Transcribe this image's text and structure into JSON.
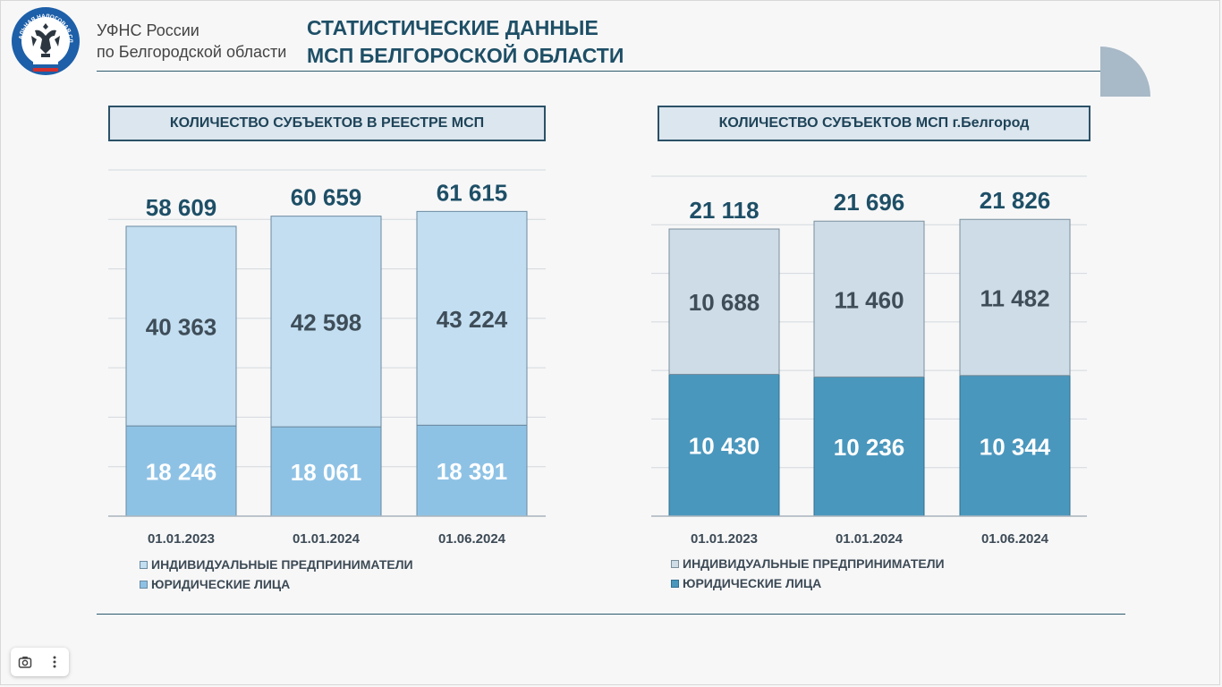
{
  "header": {
    "org_line1": "УФНС России",
    "org_line2": "по Белгородской области",
    "title_line1": "СТАТИСТИЧЕСКИЕ ДАННЫЕ",
    "title_line2": "МСП БЕЛГОРОСКОЙ ОБЛАСТИ",
    "logo_text": "ФЕДЕРАЛЬНАЯ НАЛОГОВАЯ СЛУЖБА"
  },
  "colors": {
    "left_ip": "#c3def1",
    "left_ul": "#8ec2e5",
    "right_ip": "#cddce7",
    "right_ul": "#4a97bd",
    "title": "#1e4f66",
    "value_dark": "#3e4d58",
    "value_light": "#ffffff"
  },
  "chart_data": [
    {
      "type": "bar",
      "title": "КОЛИЧЕСТВО СУБЪЕКТОВ В РЕЕСТРЕ МСП",
      "stacked": true,
      "categories": [
        "01.01.2023",
        "01.01.2024",
        "01.06.2024"
      ],
      "series": [
        {
          "name": "ИНДИВИДУАЛЬНЫЕ ПРЕДПРИНИМАТЕЛИ",
          "values": [
            40363,
            42598,
            43224
          ],
          "labels": [
            "40 363",
            "42 598",
            "43 224"
          ]
        },
        {
          "name": "ЮРИДИЧЕСКИЕ ЛИЦА",
          "values": [
            18246,
            18061,
            18391
          ],
          "labels": [
            "18 246",
            "18 061",
            "18 391"
          ]
        }
      ],
      "totals": [
        58609,
        60659,
        61615
      ],
      "total_labels": [
        "58 609",
        "60 659",
        "61 615"
      ],
      "ylim": [
        0,
        70000
      ],
      "grid": true,
      "legend": "bottom-left"
    },
    {
      "type": "bar",
      "title": "КОЛИЧЕСТВО СУБЪЕКТОВ МСП г.Белгород",
      "stacked": true,
      "categories": [
        "01.01.2023",
        "01.01.2024",
        "01.06.2024"
      ],
      "series": [
        {
          "name": "ИНДИВИДУАЛЬНЫЕ ПРЕДПРИНИМАТЕЛИ",
          "values": [
            10688,
            11460,
            11482
          ],
          "labels": [
            "10 688",
            "11 460",
            "11 482"
          ]
        },
        {
          "name": "ЮРИДИЧЕСКИЕ ЛИЦА",
          "values": [
            10430,
            10236,
            10344
          ],
          "labels": [
            "10 430",
            "10 236",
            "10 344"
          ]
        }
      ],
      "totals": [
        21118,
        21696,
        21826
      ],
      "total_labels": [
        "21 118",
        "21 696",
        "21 826"
      ],
      "ylim": [
        0,
        25000
      ],
      "grid": true,
      "legend": "bottom-left"
    }
  ],
  "toolbar": {
    "camera_icon": "camera-icon",
    "more_icon": "more-vertical-icon"
  }
}
